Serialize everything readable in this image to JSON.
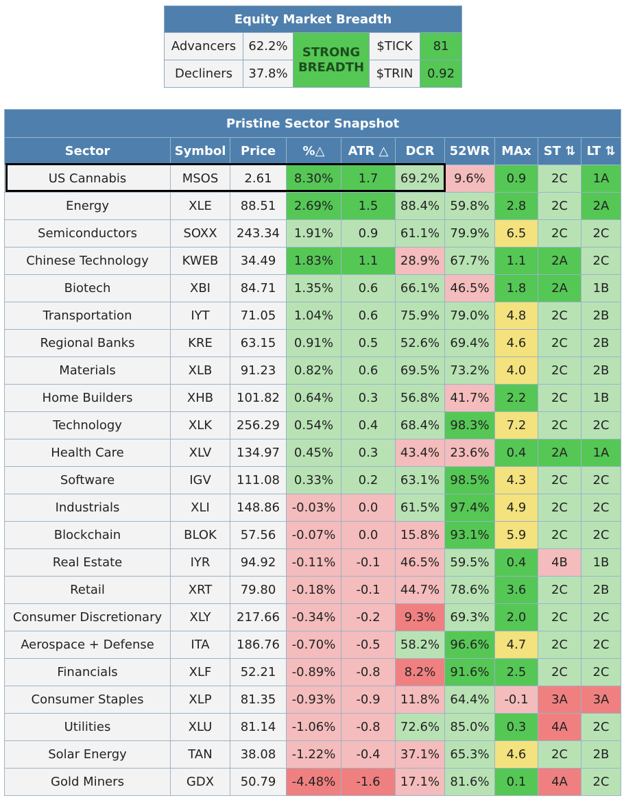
{
  "breadth": {
    "title": "Equity Market Breadth",
    "advancers_label": "Advancers",
    "advancers_value": "62.2%",
    "decliners_label": "Decliners",
    "decliners_value": "37.8%",
    "status": "STRONG BREADTH",
    "tick_label": "$TICK",
    "tick_value": "81",
    "trin_label": "$TRIN",
    "trin_value": "0.92",
    "colors": {
      "header": "#4f80ad",
      "strong": "#55c755"
    }
  },
  "snapshot": {
    "title": "Pristine Sector Snapshot",
    "columns": [
      "Sector",
      "Symbol",
      "Price",
      "%△",
      "ATR △",
      "DCR",
      "52WR",
      "MAx",
      "ST ⇅",
      "LT ⇅"
    ],
    "colors": {
      "green": "#55c755",
      "light_green": "#b8e2b4",
      "pink": "#f4bcbc",
      "red": "#f08080",
      "yellow": "#f3e27d"
    },
    "rows": [
      {
        "sector": "US Cannabis",
        "symbol": "MSOS",
        "price": "2.61",
        "pct": "8.30%",
        "atr": "1.7",
        "dcr": "69.2%",
        "wr": "9.6%",
        "max": "0.9",
        "st": "2C",
        "lt": "1A",
        "c": [
          "g",
          "g",
          "lg",
          "pk",
          "g",
          "lg",
          "g"
        ]
      },
      {
        "sector": "Energy",
        "symbol": "XLE",
        "price": "88.51",
        "pct": "2.69%",
        "atr": "1.5",
        "dcr": "88.4%",
        "wr": "59.8%",
        "max": "2.8",
        "st": "2C",
        "lt": "2A",
        "c": [
          "g",
          "g",
          "lg",
          "lg",
          "g",
          "lg",
          "g"
        ]
      },
      {
        "sector": "Semiconductors",
        "symbol": "SOXX",
        "price": "243.34",
        "pct": "1.91%",
        "atr": "0.9",
        "dcr": "61.1%",
        "wr": "79.9%",
        "max": "6.5",
        "st": "2C",
        "lt": "2C",
        "c": [
          "lg",
          "lg",
          "lg",
          "lg",
          "y",
          "lg",
          "lg"
        ]
      },
      {
        "sector": "Chinese Technology",
        "symbol": "KWEB",
        "price": "34.49",
        "pct": "1.83%",
        "atr": "1.1",
        "dcr": "28.9%",
        "wr": "67.7%",
        "max": "1.1",
        "st": "2A",
        "lt": "2C",
        "c": [
          "g",
          "g",
          "pk",
          "lg",
          "g",
          "g",
          "lg"
        ]
      },
      {
        "sector": "Biotech",
        "symbol": "XBI",
        "price": "84.71",
        "pct": "1.35%",
        "atr": "0.6",
        "dcr": "66.1%",
        "wr": "46.5%",
        "max": "1.8",
        "st": "2A",
        "lt": "1B",
        "c": [
          "lg",
          "lg",
          "lg",
          "pk",
          "g",
          "g",
          "lg"
        ]
      },
      {
        "sector": "Transportation",
        "symbol": "IYT",
        "price": "71.05",
        "pct": "1.04%",
        "atr": "0.6",
        "dcr": "75.9%",
        "wr": "79.0%",
        "max": "4.8",
        "st": "2C",
        "lt": "2B",
        "c": [
          "lg",
          "lg",
          "lg",
          "lg",
          "y",
          "lg",
          "lg"
        ]
      },
      {
        "sector": "Regional Banks",
        "symbol": "KRE",
        "price": "63.15",
        "pct": "0.91%",
        "atr": "0.5",
        "dcr": "52.6%",
        "wr": "69.4%",
        "max": "4.6",
        "st": "2C",
        "lt": "2B",
        "c": [
          "lg",
          "lg",
          "lg",
          "lg",
          "y",
          "lg",
          "lg"
        ]
      },
      {
        "sector": "Materials",
        "symbol": "XLB",
        "price": "91.23",
        "pct": "0.82%",
        "atr": "0.6",
        "dcr": "69.5%",
        "wr": "73.2%",
        "max": "4.0",
        "st": "2C",
        "lt": "2B",
        "c": [
          "lg",
          "lg",
          "lg",
          "lg",
          "y",
          "lg",
          "lg"
        ]
      },
      {
        "sector": "Home Builders",
        "symbol": "XHB",
        "price": "101.82",
        "pct": "0.64%",
        "atr": "0.3",
        "dcr": "56.8%",
        "wr": "41.7%",
        "max": "2.2",
        "st": "2C",
        "lt": "1B",
        "c": [
          "lg",
          "lg",
          "lg",
          "pk",
          "g",
          "lg",
          "lg"
        ]
      },
      {
        "sector": "Technology",
        "symbol": "XLK",
        "price": "256.29",
        "pct": "0.54%",
        "atr": "0.4",
        "dcr": "68.4%",
        "wr": "98.3%",
        "max": "7.2",
        "st": "2C",
        "lt": "2C",
        "c": [
          "lg",
          "lg",
          "lg",
          "g",
          "y",
          "lg",
          "lg"
        ]
      },
      {
        "sector": "Health Care",
        "symbol": "XLV",
        "price": "134.97",
        "pct": "0.45%",
        "atr": "0.3",
        "dcr": "43.4%",
        "wr": "23.6%",
        "max": "0.4",
        "st": "2A",
        "lt": "1A",
        "c": [
          "lg",
          "lg",
          "pk",
          "pk",
          "g",
          "g",
          "g"
        ]
      },
      {
        "sector": "Software",
        "symbol": "IGV",
        "price": "111.08",
        "pct": "0.33%",
        "atr": "0.2",
        "dcr": "63.1%",
        "wr": "98.5%",
        "max": "4.3",
        "st": "2C",
        "lt": "2C",
        "c": [
          "lg",
          "lg",
          "lg",
          "g",
          "y",
          "lg",
          "lg"
        ]
      },
      {
        "sector": "Industrials",
        "symbol": "XLI",
        "price": "148.86",
        "pct": "-0.03%",
        "atr": "0.0",
        "dcr": "61.5%",
        "wr": "97.4%",
        "max": "4.9",
        "st": "2C",
        "lt": "2C",
        "c": [
          "pk",
          "pk",
          "lg",
          "g",
          "y",
          "lg",
          "lg"
        ]
      },
      {
        "sector": "Blockchain",
        "symbol": "BLOK",
        "price": "57.56",
        "pct": "-0.07%",
        "atr": "0.0",
        "dcr": "15.8%",
        "wr": "93.1%",
        "max": "5.9",
        "st": "2C",
        "lt": "2C",
        "c": [
          "pk",
          "pk",
          "pk",
          "g",
          "y",
          "lg",
          "lg"
        ]
      },
      {
        "sector": "Real Estate",
        "symbol": "IYR",
        "price": "94.92",
        "pct": "-0.11%",
        "atr": "-0.1",
        "dcr": "46.5%",
        "wr": "59.5%",
        "max": "0.4",
        "st": "4B",
        "lt": "1B",
        "c": [
          "pk",
          "pk",
          "pk",
          "lg",
          "g",
          "pk",
          "lg"
        ]
      },
      {
        "sector": "Retail",
        "symbol": "XRT",
        "price": "79.80",
        "pct": "-0.18%",
        "atr": "-0.1",
        "dcr": "44.7%",
        "wr": "78.6%",
        "max": "3.6",
        "st": "2C",
        "lt": "2B",
        "c": [
          "pk",
          "pk",
          "pk",
          "lg",
          "g",
          "lg",
          "lg"
        ]
      },
      {
        "sector": "Consumer Discretionary",
        "symbol": "XLY",
        "price": "217.66",
        "pct": "-0.34%",
        "atr": "-0.2",
        "dcr": "9.3%",
        "wr": "69.3%",
        "max": "2.0",
        "st": "2C",
        "lt": "2C",
        "c": [
          "pk",
          "pk",
          "rd",
          "lg",
          "g",
          "lg",
          "lg"
        ]
      },
      {
        "sector": "Aerospace + Defense",
        "symbol": "ITA",
        "price": "186.76",
        "pct": "-0.70%",
        "atr": "-0.5",
        "dcr": "58.2%",
        "wr": "96.6%",
        "max": "4.7",
        "st": "2C",
        "lt": "2C",
        "c": [
          "pk",
          "pk",
          "lg",
          "g",
          "y",
          "lg",
          "lg"
        ]
      },
      {
        "sector": "Financials",
        "symbol": "XLF",
        "price": "52.21",
        "pct": "-0.89%",
        "atr": "-0.8",
        "dcr": "8.2%",
        "wr": "91.6%",
        "max": "2.5",
        "st": "2C",
        "lt": "2C",
        "c": [
          "pk",
          "pk",
          "rd",
          "g",
          "g",
          "lg",
          "lg"
        ]
      },
      {
        "sector": "Consumer Staples",
        "symbol": "XLP",
        "price": "81.35",
        "pct": "-0.93%",
        "atr": "-0.9",
        "dcr": "11.8%",
        "wr": "64.4%",
        "max": "-0.1",
        "st": "3A",
        "lt": "3A",
        "c": [
          "pk",
          "pk",
          "pk",
          "lg",
          "pk",
          "rd",
          "rd"
        ]
      },
      {
        "sector": "Utilities",
        "symbol": "XLU",
        "price": "81.14",
        "pct": "-1.06%",
        "atr": "-0.8",
        "dcr": "72.6%",
        "wr": "85.0%",
        "max": "0.3",
        "st": "4A",
        "lt": "2C",
        "c": [
          "pk",
          "pk",
          "lg",
          "lg",
          "g",
          "rd",
          "lg"
        ]
      },
      {
        "sector": "Solar Energy",
        "symbol": "TAN",
        "price": "38.08",
        "pct": "-1.22%",
        "atr": "-0.4",
        "dcr": "37.1%",
        "wr": "65.3%",
        "max": "4.6",
        "st": "2C",
        "lt": "2B",
        "c": [
          "pk",
          "pk",
          "pk",
          "lg",
          "y",
          "lg",
          "lg"
        ]
      },
      {
        "sector": "Gold Miners",
        "symbol": "GDX",
        "price": "50.79",
        "pct": "-4.48%",
        "atr": "-1.6",
        "dcr": "17.1%",
        "wr": "81.6%",
        "max": "0.1",
        "st": "4A",
        "lt": "2C",
        "c": [
          "rd",
          "rd",
          "pk",
          "lg",
          "g",
          "rd",
          "lg"
        ]
      }
    ]
  }
}
